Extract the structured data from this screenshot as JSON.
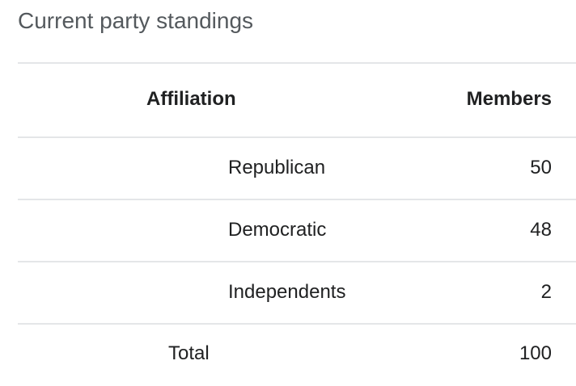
{
  "title": "Current party standings",
  "table": {
    "header": [
      "Affiliation",
      "Members"
    ],
    "rows": [
      [
        "Republican",
        50
      ],
      [
        "Democratic",
        48
      ],
      [
        "Independents",
        2
      ]
    ],
    "total": [
      "Total",
      100
    ]
  }
}
